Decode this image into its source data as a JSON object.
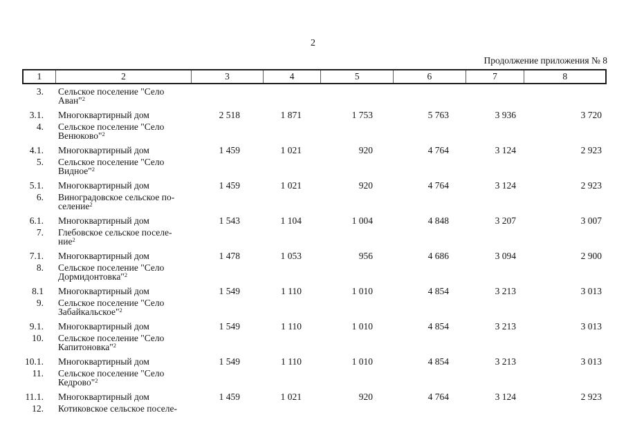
{
  "page": {
    "number": "2",
    "continuation_label": "Продолжение приложения № 8"
  },
  "table": {
    "header_cells": [
      "1",
      "2",
      "3",
      "4",
      "5",
      "6",
      "7",
      "8"
    ],
    "rows": [
      {
        "kind": "settlement",
        "num": "3.",
        "name_lines": [
          "Сельское поселение \"Село",
          "Аван\""
        ],
        "sup": "2",
        "values": [
          "",
          "",
          "",
          "",
          "",
          ""
        ]
      },
      {
        "kind": "building",
        "num": "3.1.",
        "name_lines": [
          "Многоквартирный дом"
        ],
        "sup": "",
        "values": [
          "2 518",
          "1 871",
          "1 753",
          "5 763",
          "3 936",
          "3 720"
        ]
      },
      {
        "kind": "settlement",
        "num": "4.",
        "name_lines": [
          "Сельское поселение \"Село",
          "Венюково\""
        ],
        "sup": "2",
        "values": [
          "",
          "",
          "",
          "",
          "",
          ""
        ]
      },
      {
        "kind": "building",
        "num": "4.1.",
        "name_lines": [
          "Многоквартирный дом"
        ],
        "sup": "",
        "values": [
          "1 459",
          "1 021",
          "920",
          "4 764",
          "3 124",
          "2 923"
        ]
      },
      {
        "kind": "settlement",
        "num": "5.",
        "name_lines": [
          "Сельское поселение \"Село",
          "Видное\""
        ],
        "sup": "2",
        "values": [
          "",
          "",
          "",
          "",
          "",
          ""
        ]
      },
      {
        "kind": "building",
        "num": "5.1.",
        "name_lines": [
          "Многоквартирный дом"
        ],
        "sup": "",
        "values": [
          "1 459",
          "1 021",
          "920",
          "4 764",
          "3 124",
          "2 923"
        ]
      },
      {
        "kind": "settlement",
        "num": "6.",
        "name_lines": [
          "Виноградовское сельское по-",
          "селение"
        ],
        "sup": "2",
        "values": [
          "",
          "",
          "",
          "",
          "",
          ""
        ]
      },
      {
        "kind": "building",
        "num": "6.1.",
        "name_lines": [
          "Многоквартирный дом"
        ],
        "sup": "",
        "values": [
          "1 543",
          "1 104",
          "1 004",
          "4 848",
          "3 207",
          "3 007"
        ]
      },
      {
        "kind": "settlement",
        "num": "7.",
        "name_lines": [
          "Глебовское сельское поселе-",
          "ние"
        ],
        "sup": "2",
        "values": [
          "",
          "",
          "",
          "",
          "",
          ""
        ]
      },
      {
        "kind": "building",
        "num": "7.1.",
        "name_lines": [
          "Многоквартирный дом"
        ],
        "sup": "",
        "values": [
          "1 478",
          "1 053",
          "956",
          "4 686",
          "3 094",
          "2 900"
        ]
      },
      {
        "kind": "settlement",
        "num": "8.",
        "name_lines": [
          "Сельское поселение \"Село",
          "Дормидонтовка\""
        ],
        "sup": "2",
        "values": [
          "",
          "",
          "",
          "",
          "",
          ""
        ]
      },
      {
        "kind": "building",
        "num": "8.1",
        "name_lines": [
          "Многоквартирный дом"
        ],
        "sup": "",
        "values": [
          "1 549",
          "1 110",
          "1 010",
          "4 854",
          "3 213",
          "3 013"
        ]
      },
      {
        "kind": "settlement",
        "num": "9.",
        "name_lines": [
          "Сельское поселение \"Село",
          "Забайкальское\""
        ],
        "sup": "2",
        "values": [
          "",
          "",
          "",
          "",
          "",
          ""
        ]
      },
      {
        "kind": "building",
        "num": "9.1.",
        "name_lines": [
          "Многоквартирный дом"
        ],
        "sup": "",
        "values": [
          "1 549",
          "1 110",
          "1 010",
          "4 854",
          "3 213",
          "3 013"
        ]
      },
      {
        "kind": "settlement",
        "num": "10.",
        "name_lines": [
          "Сельское поселение \"Село",
          "Капитоновка\""
        ],
        "sup": "2",
        "values": [
          "",
          "",
          "",
          "",
          "",
          ""
        ]
      },
      {
        "kind": "building",
        "num": "10.1.",
        "name_lines": [
          "Многоквартирный дом"
        ],
        "sup": "",
        "values": [
          "1 549",
          "1 110",
          "1 010",
          "4 854",
          "3 213",
          "3 013"
        ]
      },
      {
        "kind": "settlement",
        "num": "11.",
        "name_lines": [
          "Сельское поселение \"Село",
          "Кедрово\""
        ],
        "sup": "2",
        "values": [
          "",
          "",
          "",
          "",
          "",
          ""
        ]
      },
      {
        "kind": "building",
        "num": "11.1.",
        "name_lines": [
          "Многоквартирный дом"
        ],
        "sup": "",
        "values": [
          "1 459",
          "1 021",
          "920",
          "4 764",
          "3 124",
          "2 923"
        ]
      },
      {
        "kind": "settlement",
        "num": "12.",
        "name_lines": [
          "Котиковское сельское поселе-"
        ],
        "sup": "",
        "values": [
          "",
          "",
          "",
          "",
          "",
          ""
        ]
      }
    ]
  }
}
